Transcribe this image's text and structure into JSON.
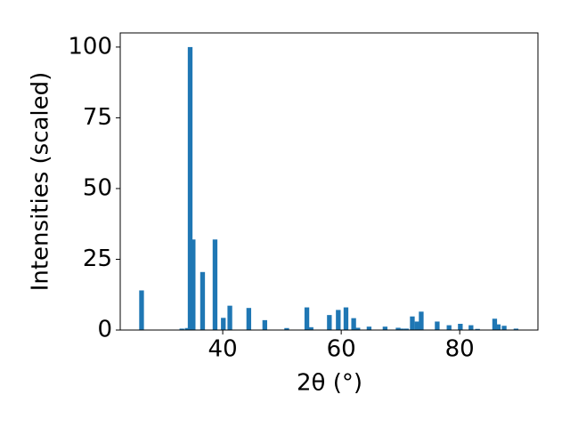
{
  "chart_data": {
    "type": "bar",
    "x_label": "2θ (°)",
    "y_label": "Intensities (scaled)",
    "x": [
      26.3,
      33.1,
      34.0,
      34.5,
      35.0,
      36.6,
      38.7,
      40.1,
      41.2,
      44.4,
      47.1,
      50.8,
      54.2,
      54.9,
      58.0,
      59.5,
      60.8,
      62.1,
      62.8,
      64.7,
      67.4,
      69.6,
      70.2,
      71.0,
      72.0,
      72.8,
      73.5,
      76.2,
      78.2,
      80.1,
      81.9,
      83.0,
      85.9,
      86.5,
      87.5,
      89.5
    ],
    "values": [
      14,
      0.5,
      0.7,
      100,
      32,
      20.5,
      32,
      4.3,
      8.6,
      7.8,
      3.5,
      0.7,
      8,
      1,
      5.3,
      7.1,
      8,
      4.2,
      0.8,
      1.2,
      1.2,
      0.8,
      0.5,
      0.5,
      4.8,
      3,
      6.5,
      3,
      1.7,
      2.2,
      1.7,
      0.4,
      4,
      2,
      1.5,
      0.5
    ],
    "color": "#1f77b4",
    "xlim": [
      22.7,
      93.2
    ],
    "xticks": [
      40,
      60,
      80
    ],
    "ylim": [
      0,
      105
    ],
    "yticks": [
      0,
      25,
      50,
      75,
      100
    ],
    "grid": false
  }
}
